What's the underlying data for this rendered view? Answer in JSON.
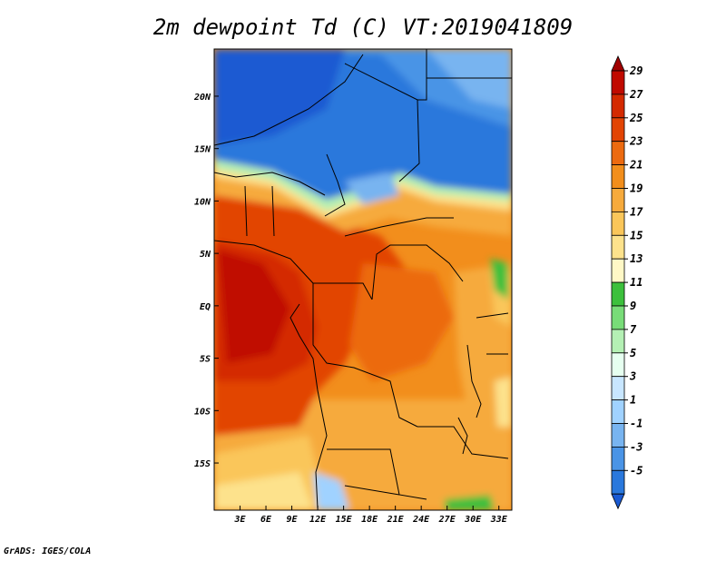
{
  "title": "2m dewpoint Td (C) VT:2019041809",
  "credit": "GrADS: IGES/COLA",
  "map": {
    "variable": "2m dewpoint",
    "units": "C",
    "valid_time": "2019041809",
    "lon_range": [
      0,
      34.5
    ],
    "lat_range": [
      -19.5,
      24.5
    ],
    "lon_ticks": [
      {
        "value": 3,
        "label": "3E"
      },
      {
        "value": 6,
        "label": "6E"
      },
      {
        "value": 9,
        "label": "9E"
      },
      {
        "value": 12,
        "label": "12E"
      },
      {
        "value": 15,
        "label": "15E"
      },
      {
        "value": 18,
        "label": "18E"
      },
      {
        "value": 21,
        "label": "21E"
      },
      {
        "value": 24,
        "label": "24E"
      },
      {
        "value": 27,
        "label": "27E"
      },
      {
        "value": 30,
        "label": "30E"
      },
      {
        "value": 33,
        "label": "33E"
      }
    ],
    "lat_ticks": [
      {
        "value": 20,
        "label": "20N"
      },
      {
        "value": 15,
        "label": "15N"
      },
      {
        "value": 10,
        "label": "10N"
      },
      {
        "value": 5,
        "label": "5N"
      },
      {
        "value": 0,
        "label": "EQ"
      },
      {
        "value": -5,
        "label": "5S"
      },
      {
        "value": -10,
        "label": "10S"
      },
      {
        "value": -15,
        "label": "15S"
      }
    ]
  },
  "colorbar": {
    "levels": [
      29,
      27,
      25,
      23,
      21,
      19,
      17,
      15,
      13,
      11,
      9,
      7,
      5,
      3,
      1,
      -1,
      -3,
      -5
    ],
    "colors": [
      "#a00000",
      "#c00a00",
      "#d42a00",
      "#e24404",
      "#ec6a10",
      "#f28e1c",
      "#f6aa3c",
      "#fac65a",
      "#fde28c",
      "#fff8c6",
      "#3cc03c",
      "#78dc78",
      "#b4f0b4",
      "#e6fff0",
      "#c8e6ff",
      "#a0d2ff",
      "#78b4f0",
      "#4a94e6",
      "#2a78dc",
      "#1a5ad2"
    ]
  }
}
